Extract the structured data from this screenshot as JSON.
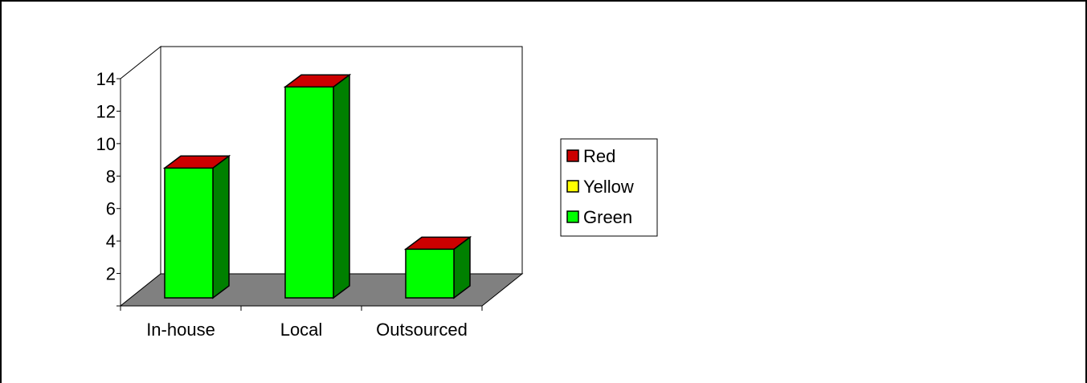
{
  "chart_data": {
    "type": "bar",
    "categories": [
      "In-house",
      "Local",
      "Outsourced"
    ],
    "series": [
      {
        "name": "Red",
        "color": "#cc0000",
        "values": [
          0,
          0,
          0
        ]
      },
      {
        "name": "Yellow",
        "color": "#ffff00",
        "values": [
          0,
          0,
          0
        ]
      },
      {
        "name": "Green",
        "color": "#00ff00",
        "values": [
          8,
          13,
          3
        ]
      }
    ],
    "yticks": [
      2,
      4,
      6,
      8,
      10,
      12,
      14
    ],
    "ylim": [
      0,
      14
    ],
    "grid": true,
    "legend_position": "right",
    "style": "3d-column",
    "colors": {
      "top_face": "#cc0000",
      "front_face": "#00ff00",
      "side_face": "#008000",
      "floor": "#808080",
      "grid": "#c0c0c0"
    }
  }
}
